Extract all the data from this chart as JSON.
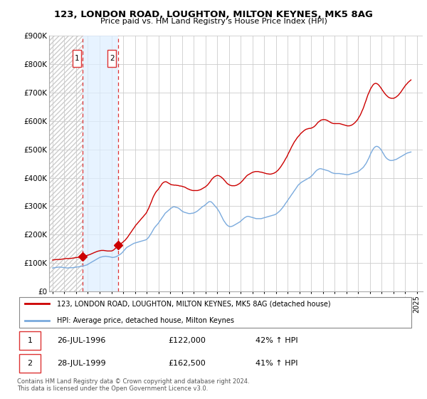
{
  "title": "123, LONDON ROAD, LOUGHTON, MILTON KEYNES, MK5 8AG",
  "subtitle": "Price paid vs. HM Land Registry's House Price Index (HPI)",
  "legend_line1": "123, LONDON ROAD, LOUGHTON, MILTON KEYNES, MK5 8AG (detached house)",
  "legend_line2": "HPI: Average price, detached house, Milton Keynes",
  "footer": "Contains HM Land Registry data © Crown copyright and database right 2024.\nThis data is licensed under the Open Government Licence v3.0.",
  "transactions": [
    {
      "id": 1,
      "date": "26-JUL-1996",
      "price": 122000,
      "pct": "42% ↑ HPI",
      "year": 1996.57
    },
    {
      "id": 2,
      "date": "28-JUL-1999",
      "price": 162500,
      "pct": "41% ↑ HPI",
      "year": 1999.57
    }
  ],
  "red_color": "#cc0000",
  "hpi_color": "#7aaadd",
  "shade_color": "#ddeeff",
  "dot_color": "#cc0000",
  "vline_color": "#dd3333",
  "hatch_color": "#cccccc",
  "ylim": [
    0,
    900000
  ],
  "yticks": [
    0,
    100000,
    200000,
    300000,
    400000,
    500000,
    600000,
    700000,
    800000,
    900000
  ],
  "ytick_labels": [
    "£0",
    "£100K",
    "£200K",
    "£300K",
    "£400K",
    "£500K",
    "£600K",
    "£700K",
    "£800K",
    "£900K"
  ],
  "xlim_start": 1993.7,
  "xlim_end": 2025.5,
  "xticks": [
    1994,
    1995,
    1996,
    1997,
    1998,
    1999,
    2000,
    2001,
    2002,
    2003,
    2004,
    2005,
    2006,
    2007,
    2008,
    2009,
    2010,
    2011,
    2012,
    2013,
    2014,
    2015,
    2016,
    2017,
    2018,
    2019,
    2020,
    2021,
    2022,
    2023,
    2024,
    2025
  ],
  "hatch_x1": 1993.7,
  "hatch_x2": 1996.57,
  "shade_x1": 1996.57,
  "shade_x2": 1999.57,
  "hpi_data_years": [
    1994.0,
    1994.08,
    1994.17,
    1994.25,
    1994.33,
    1994.42,
    1994.5,
    1994.58,
    1994.67,
    1994.75,
    1994.83,
    1994.92,
    1995.0,
    1995.08,
    1995.17,
    1995.25,
    1995.33,
    1995.42,
    1995.5,
    1995.58,
    1995.67,
    1995.75,
    1995.83,
    1995.92,
    1996.0,
    1996.08,
    1996.17,
    1996.25,
    1996.33,
    1996.42,
    1996.5,
    1996.58,
    1996.67,
    1996.75,
    1996.83,
    1996.92,
    1997.0,
    1997.08,
    1997.17,
    1997.25,
    1997.33,
    1997.42,
    1997.5,
    1997.58,
    1997.67,
    1997.75,
    1997.83,
    1997.92,
    1998.0,
    1998.08,
    1998.17,
    1998.25,
    1998.33,
    1998.42,
    1998.5,
    1998.58,
    1998.67,
    1998.75,
    1998.83,
    1998.92,
    1999.0,
    1999.08,
    1999.17,
    1999.25,
    1999.33,
    1999.42,
    1999.5,
    1999.58,
    1999.67,
    1999.75,
    1999.83,
    1999.92,
    2000.0,
    2000.08,
    2000.17,
    2000.25,
    2000.33,
    2000.42,
    2000.5,
    2000.58,
    2000.67,
    2000.75,
    2000.83,
    2000.92,
    2001.0,
    2001.08,
    2001.17,
    2001.25,
    2001.33,
    2001.42,
    2001.5,
    2001.58,
    2001.67,
    2001.75,
    2001.83,
    2001.92,
    2002.0,
    2002.08,
    2002.17,
    2002.25,
    2002.33,
    2002.42,
    2002.5,
    2002.58,
    2002.67,
    2002.75,
    2002.83,
    2002.92,
    2003.0,
    2003.08,
    2003.17,
    2003.25,
    2003.33,
    2003.42,
    2003.5,
    2003.58,
    2003.67,
    2003.75,
    2003.83,
    2003.92,
    2004.0,
    2004.08,
    2004.17,
    2004.25,
    2004.33,
    2004.42,
    2004.5,
    2004.58,
    2004.67,
    2004.75,
    2004.83,
    2004.92,
    2005.0,
    2005.08,
    2005.17,
    2005.25,
    2005.33,
    2005.42,
    2005.5,
    2005.58,
    2005.67,
    2005.75,
    2005.83,
    2005.92,
    2006.0,
    2006.08,
    2006.17,
    2006.25,
    2006.33,
    2006.42,
    2006.5,
    2006.58,
    2006.67,
    2006.75,
    2006.83,
    2006.92,
    2007.0,
    2007.08,
    2007.17,
    2007.25,
    2007.33,
    2007.42,
    2007.5,
    2007.58,
    2007.67,
    2007.75,
    2007.83,
    2007.92,
    2008.0,
    2008.08,
    2008.17,
    2008.25,
    2008.33,
    2008.42,
    2008.5,
    2008.58,
    2008.67,
    2008.75,
    2008.83,
    2008.92,
    2009.0,
    2009.08,
    2009.17,
    2009.25,
    2009.33,
    2009.42,
    2009.5,
    2009.58,
    2009.67,
    2009.75,
    2009.83,
    2009.92,
    2010.0,
    2010.08,
    2010.17,
    2010.25,
    2010.33,
    2010.42,
    2010.5,
    2010.58,
    2010.67,
    2010.75,
    2010.83,
    2010.92,
    2011.0,
    2011.08,
    2011.17,
    2011.25,
    2011.33,
    2011.42,
    2011.5,
    2011.58,
    2011.67,
    2011.75,
    2011.83,
    2011.92,
    2012.0,
    2012.08,
    2012.17,
    2012.25,
    2012.33,
    2012.42,
    2012.5,
    2012.58,
    2012.67,
    2012.75,
    2012.83,
    2012.92,
    2013.0,
    2013.08,
    2013.17,
    2013.25,
    2013.33,
    2013.42,
    2013.5,
    2013.58,
    2013.67,
    2013.75,
    2013.83,
    2013.92,
    2014.0,
    2014.08,
    2014.17,
    2014.25,
    2014.33,
    2014.42,
    2014.5,
    2014.58,
    2014.67,
    2014.75,
    2014.83,
    2014.92,
    2015.0,
    2015.08,
    2015.17,
    2015.25,
    2015.33,
    2015.42,
    2015.5,
    2015.58,
    2015.67,
    2015.75,
    2015.83,
    2015.92,
    2016.0,
    2016.08,
    2016.17,
    2016.25,
    2016.33,
    2016.42,
    2016.5,
    2016.58,
    2016.67,
    2016.75,
    2016.83,
    2016.92,
    2017.0,
    2017.08,
    2017.17,
    2017.25,
    2017.33,
    2017.42,
    2017.5,
    2017.58,
    2017.67,
    2017.75,
    2017.83,
    2017.92,
    2018.0,
    2018.08,
    2018.17,
    2018.25,
    2018.33,
    2018.42,
    2018.5,
    2018.58,
    2018.67,
    2018.75,
    2018.83,
    2018.92,
    2019.0,
    2019.08,
    2019.17,
    2019.25,
    2019.33,
    2019.42,
    2019.5,
    2019.58,
    2019.67,
    2019.75,
    2019.83,
    2019.92,
    2020.0,
    2020.08,
    2020.17,
    2020.25,
    2020.33,
    2020.42,
    2020.5,
    2020.58,
    2020.67,
    2020.75,
    2020.83,
    2020.92,
    2021.0,
    2021.08,
    2021.17,
    2021.25,
    2021.33,
    2021.42,
    2021.5,
    2021.58,
    2021.67,
    2021.75,
    2021.83,
    2021.92,
    2022.0,
    2022.08,
    2022.17,
    2022.25,
    2022.33,
    2022.42,
    2022.5,
    2022.58,
    2022.67,
    2022.75,
    2022.83,
    2022.92,
    2023.0,
    2023.08,
    2023.17,
    2023.25,
    2023.33,
    2023.42,
    2023.5,
    2023.58,
    2023.67,
    2023.75,
    2023.83,
    2023.92,
    2024.0,
    2024.08,
    2024.17,
    2024.25,
    2024.33,
    2024.42,
    2024.5
  ],
  "hpi_data_values": [
    82000,
    82500,
    83000,
    83500,
    84000,
    84500,
    85000,
    85500,
    85000,
    84500,
    84000,
    83500,
    83000,
    82500,
    82000,
    82000,
    82500,
    83000,
    83000,
    83000,
    83000,
    83500,
    84000,
    84500,
    85000,
    85500,
    86000,
    86500,
    87000,
    87500,
    88000,
    89000,
    90000,
    91000,
    92000,
    93000,
    95000,
    97000,
    99000,
    101000,
    103000,
    105000,
    107000,
    109000,
    111000,
    113000,
    115000,
    117000,
    119000,
    120000,
    121000,
    122000,
    122500,
    123000,
    123500,
    123000,
    122500,
    122000,
    121500,
    121000,
    120000,
    119000,
    119500,
    120000,
    121000,
    122000,
    124000,
    126000,
    128000,
    130000,
    133000,
    136000,
    140000,
    144000,
    148000,
    152000,
    155000,
    157000,
    159000,
    161000,
    163000,
    165000,
    167000,
    169000,
    170000,
    171000,
    172000,
    173000,
    174000,
    175000,
    176000,
    177000,
    178000,
    179000,
    180000,
    181000,
    183000,
    186000,
    190000,
    195000,
    200000,
    206000,
    212000,
    218000,
    224000,
    228000,
    232000,
    236000,
    240000,
    245000,
    250000,
    255000,
    260000,
    265000,
    270000,
    275000,
    278000,
    281000,
    284000,
    287000,
    290000,
    293000,
    295000,
    297000,
    298000,
    297000,
    296000,
    295000,
    294000,
    292000,
    289000,
    286000,
    283000,
    281000,
    279000,
    278000,
    277000,
    276000,
    275000,
    274000,
    274000,
    274000,
    275000,
    275000,
    276000,
    277000,
    279000,
    281000,
    283000,
    286000,
    289000,
    292000,
    295000,
    298000,
    300000,
    302000,
    305000,
    308000,
    311000,
    314000,
    316000,
    316000,
    315000,
    312000,
    308000,
    304000,
    300000,
    296000,
    292000,
    287000,
    281000,
    275000,
    268000,
    261000,
    254000,
    248000,
    243000,
    238000,
    234000,
    231000,
    229000,
    228000,
    228000,
    229000,
    230000,
    232000,
    234000,
    236000,
    238000,
    240000,
    242000,
    244000,
    247000,
    250000,
    253000,
    256000,
    259000,
    261000,
    263000,
    264000,
    264000,
    263000,
    262000,
    261000,
    260000,
    259000,
    258000,
    257000,
    256000,
    256000,
    256000,
    256000,
    256000,
    256000,
    257000,
    258000,
    259000,
    260000,
    261000,
    262000,
    263000,
    264000,
    265000,
    266000,
    267000,
    268000,
    269000,
    270000,
    272000,
    274000,
    277000,
    280000,
    283000,
    287000,
    291000,
    295000,
    300000,
    305000,
    310000,
    315000,
    320000,
    325000,
    330000,
    335000,
    340000,
    345000,
    350000,
    355000,
    360000,
    365000,
    370000,
    375000,
    378000,
    381000,
    384000,
    386000,
    388000,
    390000,
    392000,
    394000,
    396000,
    398000,
    400000,
    402000,
    405000,
    408000,
    412000,
    416000,
    420000,
    424000,
    427000,
    429000,
    431000,
    432000,
    432000,
    431000,
    430000,
    429000,
    428000,
    427000,
    426000,
    425000,
    424000,
    422000,
    420000,
    418000,
    417000,
    416000,
    415000,
    415000,
    415000,
    415000,
    415000,
    415000,
    414000,
    414000,
    413000,
    413000,
    412000,
    412000,
    411000,
    411000,
    411000,
    412000,
    413000,
    414000,
    415000,
    416000,
    417000,
    418000,
    419000,
    420000,
    422000,
    424000,
    427000,
    430000,
    433000,
    436000,
    440000,
    445000,
    450000,
    456000,
    463000,
    470000,
    478000,
    486000,
    493000,
    499000,
    504000,
    508000,
    510000,
    511000,
    510000,
    508000,
    505000,
    501000,
    496000,
    490000,
    484000,
    478000,
    473000,
    469000,
    466000,
    464000,
    462000,
    461000,
    461000,
    461000,
    462000,
    463000,
    464000,
    465000,
    467000,
    469000,
    471000,
    473000,
    475000,
    477000,
    479000,
    481000,
    483000,
    485000,
    487000,
    488000,
    489000,
    490000,
    491000
  ],
  "red_data_years": [
    1994.0,
    1994.08,
    1994.17,
    1994.25,
    1994.33,
    1994.42,
    1994.5,
    1994.58,
    1994.67,
    1994.75,
    1994.83,
    1994.92,
    1995.0,
    1995.08,
    1995.17,
    1995.25,
    1995.33,
    1995.42,
    1995.5,
    1995.58,
    1995.67,
    1995.75,
    1995.83,
    1995.92,
    1996.0,
    1996.08,
    1996.17,
    1996.25,
    1996.33,
    1996.42,
    1996.5,
    1996.57,
    1996.67,
    1996.75,
    1996.83,
    1996.92,
    1997.0,
    1997.08,
    1997.17,
    1997.25,
    1997.33,
    1997.42,
    1997.5,
    1997.58,
    1997.67,
    1997.75,
    1997.83,
    1997.92,
    1998.0,
    1998.08,
    1998.17,
    1998.25,
    1998.33,
    1998.42,
    1998.5,
    1998.58,
    1998.67,
    1998.75,
    1998.83,
    1998.92,
    1999.0,
    1999.08,
    1999.17,
    1999.25,
    1999.33,
    1999.42,
    1999.5,
    1999.57,
    1999.67,
    1999.75,
    1999.83,
    1999.92,
    2000.0,
    2000.08,
    2000.17,
    2000.25,
    2000.33,
    2000.42,
    2000.5,
    2000.58,
    2000.67,
    2000.75,
    2000.83,
    2000.92,
    2001.0,
    2001.08,
    2001.17,
    2001.25,
    2001.33,
    2001.42,
    2001.5,
    2001.58,
    2001.67,
    2001.75,
    2001.83,
    2001.92,
    2002.0,
    2002.08,
    2002.17,
    2002.25,
    2002.33,
    2002.42,
    2002.5,
    2002.58,
    2002.67,
    2002.75,
    2002.83,
    2002.92,
    2003.0,
    2003.08,
    2003.17,
    2003.25,
    2003.33,
    2003.42,
    2003.5,
    2003.58,
    2003.67,
    2003.75,
    2003.83,
    2003.92,
    2004.0,
    2004.08,
    2004.17,
    2004.25,
    2004.33,
    2004.42,
    2004.5,
    2004.58,
    2004.67,
    2004.75,
    2004.83,
    2004.92,
    2005.0,
    2005.08,
    2005.17,
    2005.25,
    2005.33,
    2005.42,
    2005.5,
    2005.58,
    2005.67,
    2005.75,
    2005.83,
    2005.92,
    2006.0,
    2006.08,
    2006.17,
    2006.25,
    2006.33,
    2006.42,
    2006.5,
    2006.58,
    2006.67,
    2006.75,
    2006.83,
    2006.92,
    2007.0,
    2007.08,
    2007.17,
    2007.25,
    2007.33,
    2007.42,
    2007.5,
    2007.58,
    2007.67,
    2007.75,
    2007.83,
    2007.92,
    2008.0,
    2008.08,
    2008.17,
    2008.25,
    2008.33,
    2008.42,
    2008.5,
    2008.58,
    2008.67,
    2008.75,
    2008.83,
    2008.92,
    2009.0,
    2009.08,
    2009.17,
    2009.25,
    2009.33,
    2009.42,
    2009.5,
    2009.58,
    2009.67,
    2009.75,
    2009.83,
    2009.92,
    2010.0,
    2010.08,
    2010.17,
    2010.25,
    2010.33,
    2010.42,
    2010.5,
    2010.58,
    2010.67,
    2010.75,
    2010.83,
    2010.92,
    2011.0,
    2011.08,
    2011.17,
    2011.25,
    2011.33,
    2011.42,
    2011.5,
    2011.58,
    2011.67,
    2011.75,
    2011.83,
    2011.92,
    2012.0,
    2012.08,
    2012.17,
    2012.25,
    2012.33,
    2012.42,
    2012.5,
    2012.58,
    2012.67,
    2012.75,
    2012.83,
    2012.92,
    2013.0,
    2013.08,
    2013.17,
    2013.25,
    2013.33,
    2013.42,
    2013.5,
    2013.58,
    2013.67,
    2013.75,
    2013.83,
    2013.92,
    2014.0,
    2014.08,
    2014.17,
    2014.25,
    2014.33,
    2014.42,
    2014.5,
    2014.58,
    2014.67,
    2014.75,
    2014.83,
    2014.92,
    2015.0,
    2015.08,
    2015.17,
    2015.25,
    2015.33,
    2015.42,
    2015.5,
    2015.58,
    2015.67,
    2015.75,
    2015.83,
    2015.92,
    2016.0,
    2016.08,
    2016.17,
    2016.25,
    2016.33,
    2016.42,
    2016.5,
    2016.58,
    2016.67,
    2016.75,
    2016.83,
    2016.92,
    2017.0,
    2017.08,
    2017.17,
    2017.25,
    2017.33,
    2017.42,
    2017.5,
    2017.58,
    2017.67,
    2017.75,
    2017.83,
    2017.92,
    2018.0,
    2018.08,
    2018.17,
    2018.25,
    2018.33,
    2018.42,
    2018.5,
    2018.58,
    2018.67,
    2018.75,
    2018.83,
    2018.92,
    2019.0,
    2019.08,
    2019.17,
    2019.25,
    2019.33,
    2019.42,
    2019.5,
    2019.58,
    2019.67,
    2019.75,
    2019.83,
    2019.92,
    2020.0,
    2020.08,
    2020.17,
    2020.25,
    2020.33,
    2020.42,
    2020.5,
    2020.58,
    2020.67,
    2020.75,
    2020.83,
    2020.92,
    2021.0,
    2021.08,
    2021.17,
    2021.25,
    2021.33,
    2021.42,
    2021.5,
    2021.58,
    2021.67,
    2021.75,
    2021.83,
    2021.92,
    2022.0,
    2022.08,
    2022.17,
    2022.25,
    2022.33,
    2022.42,
    2022.5,
    2022.58,
    2022.67,
    2022.75,
    2022.83,
    2022.92,
    2023.0,
    2023.08,
    2023.17,
    2023.25,
    2023.33,
    2023.42,
    2023.5,
    2023.58,
    2023.67,
    2023.75,
    2023.83,
    2023.92,
    2024.0,
    2024.08,
    2024.17,
    2024.25,
    2024.33,
    2024.42,
    2024.5
  ],
  "red_data_values": [
    110000,
    110500,
    111000,
    111500,
    112000,
    112000,
    112000,
    112000,
    112000,
    113000,
    113500,
    114000,
    114500,
    115000,
    115500,
    115500,
    115500,
    115500,
    115500,
    116000,
    116500,
    117000,
    117500,
    118000,
    118500,
    119000,
    119500,
    120000,
    120500,
    121000,
    121500,
    122000,
    123000,
    124000,
    125000,
    126000,
    127000,
    128000,
    129500,
    131000,
    132500,
    134000,
    135500,
    137000,
    138500,
    140000,
    141000,
    142000,
    143000,
    143500,
    144000,
    144000,
    144000,
    143500,
    143000,
    142500,
    142000,
    142000,
    142000,
    142000,
    142000,
    143000,
    145000,
    148000,
    151000,
    154000,
    158000,
    162500,
    165000,
    167000,
    169000,
    171000,
    174000,
    177000,
    180000,
    184000,
    188000,
    193000,
    198000,
    203000,
    208000,
    213000,
    218000,
    223000,
    228000,
    233000,
    237000,
    241000,
    245000,
    249000,
    253000,
    257000,
    261000,
    265000,
    269000,
    273000,
    278000,
    285000,
    292000,
    300000,
    308000,
    317000,
    326000,
    334000,
    341000,
    347000,
    352000,
    356000,
    360000,
    365000,
    370000,
    375000,
    380000,
    383000,
    385000,
    386000,
    386000,
    384000,
    382000,
    380000,
    378000,
    376000,
    375000,
    375000,
    374000,
    374000,
    374000,
    373000,
    373000,
    372000,
    371000,
    371000,
    370000,
    369000,
    368000,
    367000,
    365000,
    363000,
    361000,
    360000,
    358000,
    357000,
    356000,
    355000,
    355000,
    355000,
    355000,
    355000,
    355000,
    356000,
    357000,
    358000,
    360000,
    362000,
    364000,
    366000,
    368000,
    371000,
    374000,
    378000,
    382000,
    387000,
    392000,
    396000,
    400000,
    403000,
    405000,
    407000,
    408000,
    408000,
    407000,
    405000,
    403000,
    400000,
    397000,
    393000,
    389000,
    385000,
    381000,
    378000,
    376000,
    374000,
    373000,
    372000,
    372000,
    372000,
    372000,
    373000,
    374000,
    376000,
    378000,
    380000,
    383000,
    386000,
    390000,
    394000,
    398000,
    402000,
    406000,
    409000,
    411000,
    413000,
    415000,
    417000,
    419000,
    420000,
    421000,
    422000,
    422000,
    422000,
    422000,
    421000,
    420000,
    420000,
    419000,
    418000,
    417000,
    416000,
    415000,
    414000,
    414000,
    413000,
    413000,
    413000,
    414000,
    415000,
    416000,
    418000,
    420000,
    423000,
    426000,
    430000,
    434000,
    439000,
    444000,
    449000,
    455000,
    461000,
    467000,
    473000,
    480000,
    487000,
    494000,
    501000,
    508000,
    515000,
    521000,
    527000,
    532000,
    537000,
    542000,
    546000,
    550000,
    554000,
    558000,
    561000,
    564000,
    567000,
    569000,
    571000,
    572000,
    573000,
    574000,
    574000,
    575000,
    576000,
    578000,
    580000,
    583000,
    587000,
    591000,
    595000,
    598000,
    601000,
    603000,
    604000,
    605000,
    605000,
    605000,
    604000,
    603000,
    601000,
    599000,
    597000,
    595000,
    593000,
    592000,
    591000,
    591000,
    591000,
    591000,
    591000,
    591000,
    591000,
    590000,
    589000,
    588000,
    587000,
    586000,
    585000,
    584000,
    583000,
    583000,
    583000,
    584000,
    585000,
    587000,
    589000,
    592000,
    595000,
    599000,
    603000,
    608000,
    614000,
    620000,
    627000,
    635000,
    643000,
    652000,
    662000,
    672000,
    682000,
    692000,
    700000,
    708000,
    715000,
    721000,
    726000,
    730000,
    732000,
    733000,
    732000,
    730000,
    727000,
    723000,
    718000,
    713000,
    708000,
    703000,
    698000,
    694000,
    690000,
    687000,
    684000,
    682000,
    681000,
    680000,
    680000,
    680000,
    681000,
    683000,
    685000,
    688000,
    691000,
    695000,
    699000,
    704000,
    709000,
    714000,
    719000,
    724000,
    728000,
    732000,
    736000,
    739000,
    742000,
    745000
  ]
}
